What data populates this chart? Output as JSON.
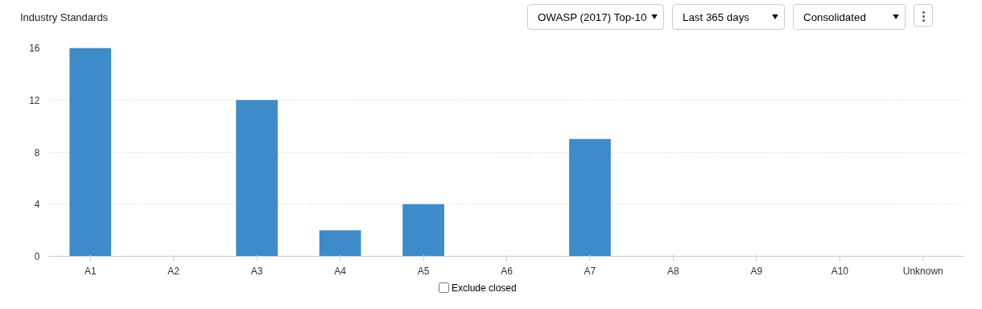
{
  "chart_data": {
    "type": "bar",
    "title": "Industry Standards",
    "categories": [
      "A1",
      "A2",
      "A3",
      "A4",
      "A5",
      "A6",
      "A7",
      "A8",
      "A9",
      "A10",
      "Unknown"
    ],
    "values": [
      16,
      0,
      12,
      2,
      4,
      0,
      9,
      0,
      0,
      0,
      0
    ],
    "color": "#3d8bc9",
    "ylim": [
      0,
      16
    ],
    "yticks": [
      0,
      4,
      8,
      12,
      16
    ],
    "grid": "y",
    "annotations": [
      "OWASP (2017) Top-10",
      "Last 365 days",
      "Consolidated",
      "Exclude closed"
    ]
  }
}
